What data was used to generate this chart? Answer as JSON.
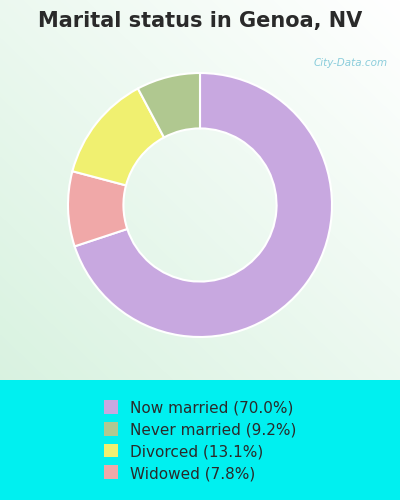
{
  "title": "Marital status in Genoa, NV",
  "slices": [
    70.0,
    9.2,
    13.1,
    7.8
  ],
  "labels": [
    "Now married (70.0%)",
    "Widowed (7.8%)",
    "Divorced (13.1%)",
    "Never married (9.2%)"
  ],
  "legend_order": [
    0,
    3,
    2,
    1
  ],
  "colors": [
    "#c8a8e0",
    "#f0a8a8",
    "#f0f070",
    "#b0c890"
  ],
  "legend_colors": [
    "#c8a8e0",
    "#b0c890",
    "#f0f070",
    "#f0a8a8"
  ],
  "outer_bg": "#00f0f0",
  "chart_bg_inner": "#ffffff",
  "chart_bg_outer": "#c8f0e0",
  "title_fontsize": 15,
  "legend_fontsize": 11,
  "watermark": "City-Data.com"
}
